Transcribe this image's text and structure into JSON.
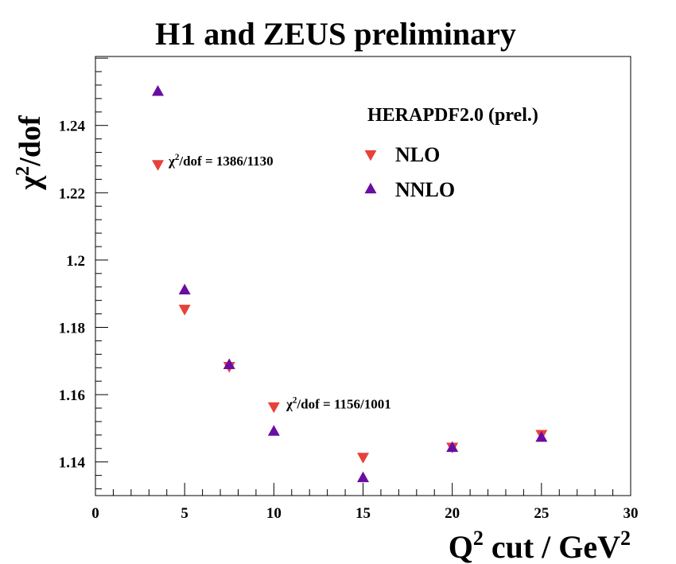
{
  "chart_data": {
    "type": "scatter",
    "title": "H1 and ZEUS preliminary",
    "ylabel": {
      "base": "χ",
      "sup": "2",
      "rest": "/dof"
    },
    "xlabel": {
      "pre": "Q",
      "sup": "2",
      "mid": " cut / GeV",
      "sup2": "2"
    },
    "xlim": [
      0,
      30
    ],
    "ylim": [
      1.13,
      1.2605
    ],
    "x_ticks": [
      0,
      5,
      10,
      15,
      20,
      25,
      30
    ],
    "y_ticks": [
      1.14,
      1.16,
      1.18,
      1.2,
      1.22,
      1.24
    ],
    "y_tick_labels": [
      "1.14",
      "1.16",
      "1.18",
      "1.2",
      "1.22",
      "1.24"
    ],
    "grid": false,
    "legend": {
      "title": "HERAPDF2.0 (prel.)",
      "placement": "top-right"
    },
    "series": [
      {
        "name": "NLO",
        "marker": "triangle-down",
        "color": "#e8403a",
        "x": [
          3.5,
          5,
          7.5,
          10,
          15,
          20,
          25
        ],
        "y": [
          1.2285,
          1.1855,
          1.1685,
          1.1565,
          1.1415,
          1.1445,
          1.1483
        ]
      },
      {
        "name": "NNLO",
        "marker": "triangle-up",
        "color": "#6a0da3",
        "x": [
          3.5,
          5,
          7.5,
          10,
          15,
          20,
          25
        ],
        "y": [
          1.25,
          1.191,
          1.1688,
          1.149,
          1.1352,
          1.1442,
          1.1472
        ]
      }
    ],
    "annotations": [
      {
        "prefix": "χ",
        "sup": "2",
        "text": "/dof = 1386/1130",
        "x": 4.1,
        "y": 1.2295
      },
      {
        "prefix": "χ",
        "sup": "2",
        "text": "/dof = 1156/1001",
        "x": 10.7,
        "y": 1.1573
      }
    ]
  }
}
